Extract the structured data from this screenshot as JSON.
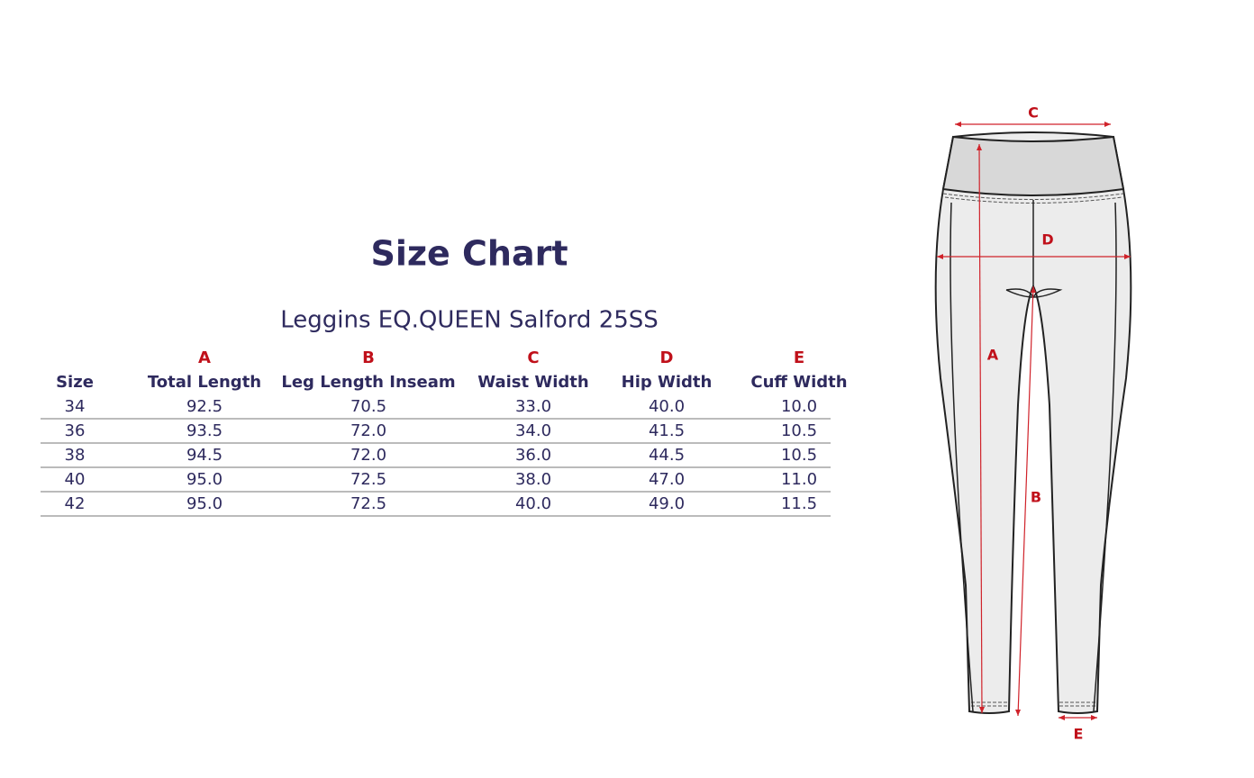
{
  "title": "Size Chart",
  "subtitle": "Leggins EQ.QUEEN Salford 25SS",
  "table": {
    "letters": [
      "A",
      "B",
      "C",
      "D",
      "E"
    ],
    "headers": [
      "Size",
      "Total Length",
      "Leg Length Inseam",
      "Waist Width",
      "Hip Width",
      "Cuff Width"
    ],
    "rows": [
      [
        "34",
        "92.5",
        "70.5",
        "33.0",
        "40.0",
        "10.0"
      ],
      [
        "36",
        "93.5",
        "72.0",
        "34.0",
        "41.5",
        "10.5"
      ],
      [
        "38",
        "94.5",
        "72.0",
        "36.0",
        "44.5",
        "10.5"
      ],
      [
        "40",
        "95.0",
        "72.5",
        "38.0",
        "47.0",
        "11.0"
      ],
      [
        "42",
        "95.0",
        "72.5",
        "40.0",
        "49.0",
        "11.5"
      ]
    ]
  },
  "diagram": {
    "labels": [
      "C",
      "D",
      "A",
      "B",
      "E"
    ]
  }
}
